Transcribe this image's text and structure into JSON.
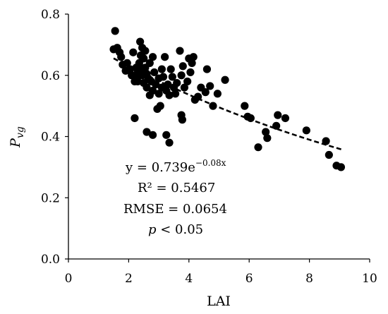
{
  "chart_data": {
    "type": "scatter",
    "xlabel": "LAI",
    "ylabel_main": "P",
    "ylabel_sub": "vg",
    "xlim": [
      0,
      10
    ],
    "ylim": [
      0.0,
      0.8
    ],
    "x_ticks": [
      0,
      2,
      4,
      6,
      8,
      10
    ],
    "y_ticks": [
      0.0,
      0.2,
      0.4,
      0.6,
      0.8
    ],
    "y_tick_labels": [
      "0.0",
      "0.2",
      "0.4",
      "0.6",
      "0.8"
    ],
    "grid": false,
    "legend": "none",
    "fit": {
      "type": "exponential",
      "a": 0.739,
      "b": -0.08,
      "x_range": [
        1.5,
        9.1
      ],
      "style": "dashed"
    },
    "annotations": {
      "equation_prefix": "y = 0.739e",
      "equation_exponent": "−0.08x",
      "r2": "R² = 0.5467",
      "rmse": "RMSE = 0.0654",
      "p_symbol": "p",
      "p_value": " < 0.05"
    },
    "point_color": "#000000",
    "points": [
      [
        1.55,
        0.745
      ],
      [
        1.5,
        0.685
      ],
      [
        1.62,
        0.69
      ],
      [
        1.7,
        0.675
      ],
      [
        1.75,
        0.66
      ],
      [
        1.8,
        0.635
      ],
      [
        1.9,
        0.615
      ],
      [
        1.95,
        0.64
      ],
      [
        2.05,
        0.62
      ],
      [
        2.1,
        0.6
      ],
      [
        2.15,
        0.675
      ],
      [
        2.2,
        0.58
      ],
      [
        2.25,
        0.625
      ],
      [
        2.25,
        0.595
      ],
      [
        2.3,
        0.61
      ],
      [
        2.3,
        0.58
      ],
      [
        2.35,
        0.64
      ],
      [
        2.38,
        0.71
      ],
      [
        2.4,
        0.665
      ],
      [
        2.4,
        0.62
      ],
      [
        2.45,
        0.69
      ],
      [
        2.45,
        0.6
      ],
      [
        2.5,
        0.655
      ],
      [
        2.5,
        0.575
      ],
      [
        2.55,
        0.68
      ],
      [
        2.55,
        0.625
      ],
      [
        2.6,
        0.605
      ],
      [
        2.6,
        0.56
      ],
      [
        2.65,
        0.59
      ],
      [
        2.7,
        0.64
      ],
      [
        2.7,
        0.535
      ],
      [
        2.75,
        0.58
      ],
      [
        2.8,
        0.66
      ],
      [
        2.8,
        0.55
      ],
      [
        2.85,
        0.61
      ],
      [
        2.9,
        0.57
      ],
      [
        2.95,
        0.49
      ],
      [
        3.0,
        0.59
      ],
      [
        3.0,
        0.54
      ],
      [
        3.05,
        0.5
      ],
      [
        3.1,
        0.62
      ],
      [
        3.1,
        0.56
      ],
      [
        3.15,
        0.595
      ],
      [
        3.2,
        0.66
      ],
      [
        3.25,
        0.55
      ],
      [
        3.3,
        0.57
      ],
      [
        3.35,
        0.535
      ],
      [
        3.4,
        0.62
      ],
      [
        3.45,
        0.595
      ],
      [
        3.5,
        0.56
      ],
      [
        3.55,
        0.54
      ],
      [
        3.6,
        0.575
      ],
      [
        3.7,
        0.68
      ],
      [
        3.75,
        0.6
      ],
      [
        3.75,
        0.47
      ],
      [
        3.78,
        0.455
      ],
      [
        3.8,
        0.63
      ],
      [
        3.85,
        0.56
      ],
      [
        3.95,
        0.58
      ],
      [
        4.0,
        0.655
      ],
      [
        4.05,
        0.61
      ],
      [
        4.1,
        0.64
      ],
      [
        4.15,
        0.66
      ],
      [
        4.2,
        0.52
      ],
      [
        4.3,
        0.53
      ],
      [
        4.4,
        0.56
      ],
      [
        4.55,
        0.545
      ],
      [
        4.6,
        0.62
      ],
      [
        4.7,
        0.565
      ],
      [
        4.8,
        0.5
      ],
      [
        4.95,
        0.54
      ],
      [
        5.2,
        0.585
      ],
      [
        2.2,
        0.46
      ],
      [
        2.6,
        0.415
      ],
      [
        2.8,
        0.405
      ],
      [
        3.25,
        0.405
      ],
      [
        3.35,
        0.38
      ],
      [
        5.85,
        0.5
      ],
      [
        5.95,
        0.465
      ],
      [
        6.05,
        0.46
      ],
      [
        6.3,
        0.365
      ],
      [
        6.55,
        0.415
      ],
      [
        6.6,
        0.395
      ],
      [
        6.9,
        0.435
      ],
      [
        6.95,
        0.47
      ],
      [
        7.2,
        0.46
      ],
      [
        7.9,
        0.42
      ],
      [
        8.55,
        0.385
      ],
      [
        8.65,
        0.34
      ],
      [
        8.9,
        0.305
      ],
      [
        9.05,
        0.3
      ]
    ]
  }
}
